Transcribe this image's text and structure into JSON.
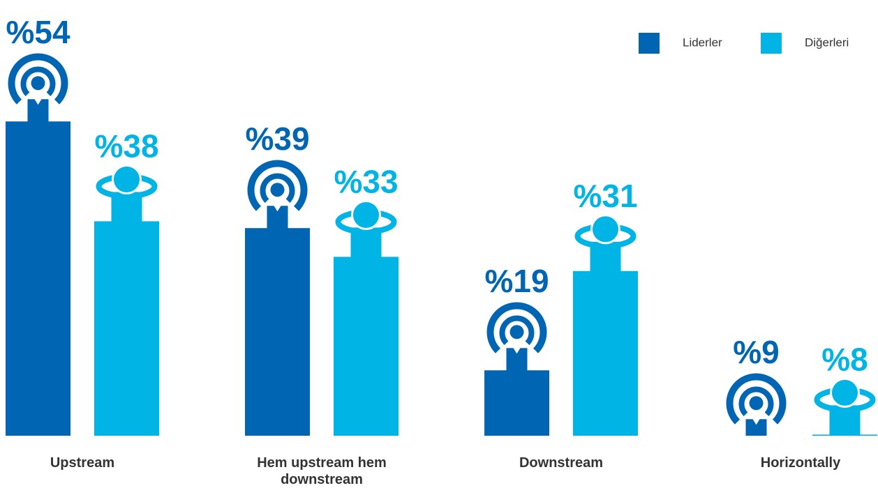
{
  "chart_data": {
    "type": "bar",
    "categories": [
      "Upstream",
      "Hem upstream hem downstream",
      "Downstream",
      "Horizontally"
    ],
    "series": [
      {
        "name": "Liderler",
        "color": "#0066b3",
        "values": [
          54,
          39,
          19,
          9
        ],
        "value_labels": [
          "%54",
          "%39",
          "%19",
          "%9"
        ]
      },
      {
        "name": "Diğerleri",
        "color": "#00b4e6",
        "values": [
          38,
          33,
          31,
          8
        ],
        "value_labels": [
          "%38",
          "%33",
          "%31",
          "%8"
        ]
      }
    ]
  }
}
